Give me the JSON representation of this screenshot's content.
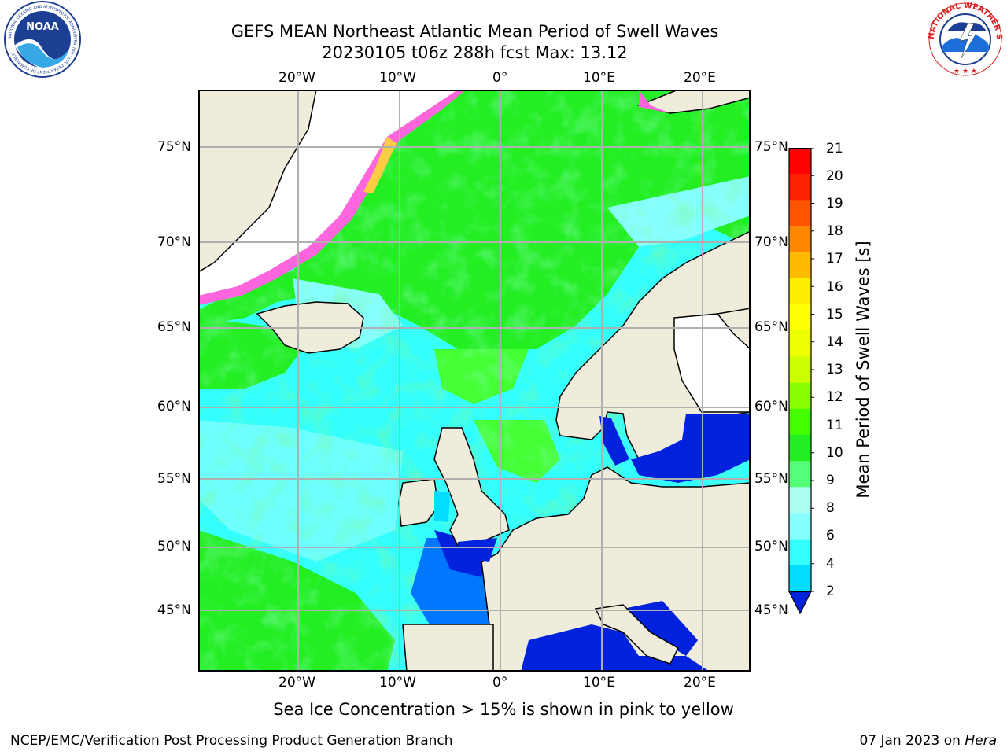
{
  "header": {
    "title_line1": "GEFS MEAN Northeast Atlantic Mean Period of Swell Waves",
    "title_line2": "20230105 t06z 288h fcst   Max: 13.12"
  },
  "logos": {
    "noaa_text": "NOAA",
    "noaa_ring_text": "NATIONAL OCEANIC AND ATMOSPHERIC ADMINISTRATION · U.S. DEPARTMENT OF COMMERCE",
    "nws_ring_text": "NATIONAL WEATHER SERVICE"
  },
  "map": {
    "lon_labels": [
      "20°W",
      "10°W",
      "0°",
      "10°E",
      "20°E"
    ],
    "lat_labels_left": [
      "75°N",
      "70°N",
      "65°N",
      "60°N",
      "55°N",
      "50°N",
      "45°N"
    ],
    "lat_labels_right": [
      "75°N",
      "70°N",
      "65°N",
      "60°N",
      "55°N",
      "50°N",
      "45°N"
    ],
    "ocean_color": "#33ffff",
    "land_color": "#efecdc",
    "ice_color": "#ffffff"
  },
  "colorbar": {
    "title": "Mean Period of Swell Waves [s]",
    "tick_labels": [
      "21",
      "20",
      "19",
      "18",
      "17",
      "16",
      "15",
      "14",
      "13",
      "12",
      "11",
      "10",
      "9",
      "8",
      "6",
      "4",
      "2"
    ],
    "colors_bottom_to_top": [
      "#0022dd",
      "#0077ff",
      "#00ddff",
      "#33ffff",
      "#88ffff",
      "#aaffee",
      "#55ff77",
      "#22ee22",
      "#44ff00",
      "#88ff00",
      "#ccff00",
      "#eeff00",
      "#ffff00",
      "#ffee00",
      "#ffbb00",
      "#ff8800",
      "#ff5500",
      "#ff2200",
      "#ff0000"
    ]
  },
  "caption": "Sea Ice Concentration > 15% is shown in pink to yellow",
  "footer": {
    "left": "NCEP/EMC/Verification Post Processing Product Generation Branch",
    "right_prefix": "07 Jan 2023 on ",
    "right_host": "Hera"
  }
}
